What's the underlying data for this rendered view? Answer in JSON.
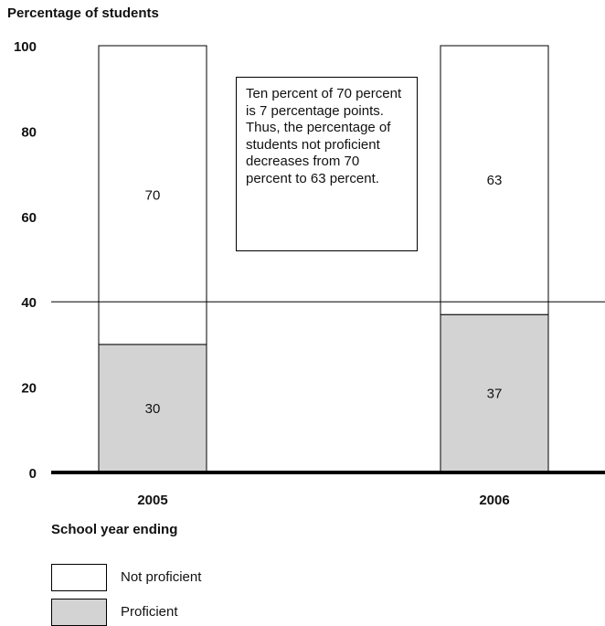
{
  "chart_data": {
    "type": "bar",
    "stacked": true,
    "ylabel": "Percentage of students",
    "xlabel": "School year ending",
    "ylim": [
      0,
      100
    ],
    "yticks": [
      0,
      20,
      40,
      60,
      80,
      100
    ],
    "reference_line": 40,
    "categories": [
      "2005",
      "2006"
    ],
    "series": [
      {
        "name": "Proficient",
        "values": [
          30,
          37
        ],
        "color": "#d3d3d3"
      },
      {
        "name": "Not proficient",
        "values": [
          70,
          63
        ],
        "color": "#ffffff"
      }
    ],
    "annotation": "Ten percent of 70 percent is 7 percentage points. Thus, the percentage of students not proficient decreases from 70 percent to 63 percent.",
    "legend": [
      {
        "label": "Not proficient",
        "color": "#ffffff"
      },
      {
        "label": "Proficient",
        "color": "#d3d3d3"
      }
    ]
  }
}
